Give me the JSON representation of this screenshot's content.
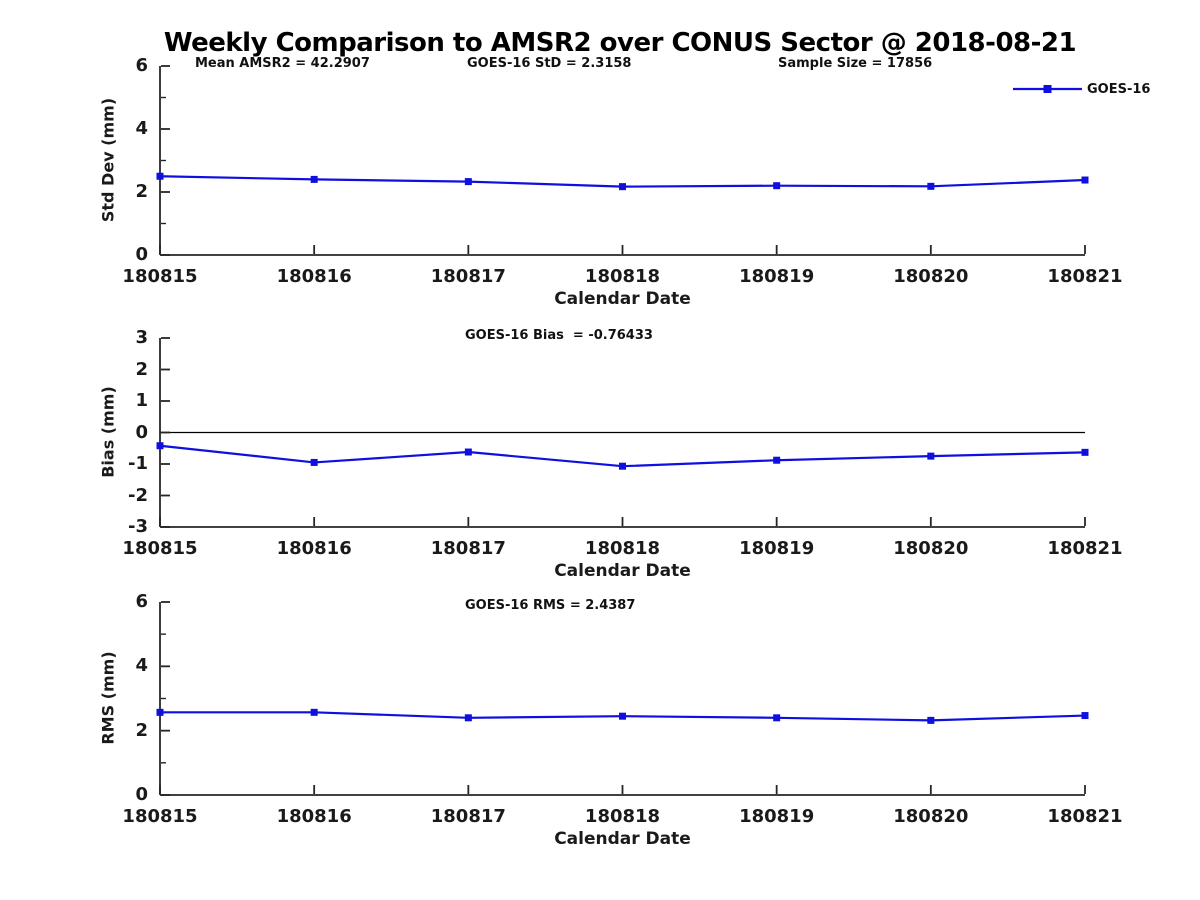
{
  "page": {
    "title": "Weekly Comparison to AMSR2 over CONUS Sector @ 2018-08-21"
  },
  "legend": {
    "label": "GOES-16"
  },
  "colors": {
    "line": "#0f0fe0",
    "marker": "#0f0fe0",
    "axis": "#262626",
    "zero_line": "#000000",
    "text": "#1a1a1a"
  },
  "chart_data": [
    {
      "type": "line",
      "title": "",
      "categories": [
        "180815",
        "180816",
        "180817",
        "180818",
        "180819",
        "180820",
        "180821"
      ],
      "series": [
        {
          "name": "GOES-16",
          "values": [
            2.5,
            2.4,
            2.33,
            2.17,
            2.2,
            2.18,
            2.38
          ]
        }
      ],
      "xlabel": "Calendar Date",
      "ylabel": "Std Dev (mm)",
      "ylim": [
        0,
        6
      ],
      "yticks": [
        0,
        2,
        4,
        6
      ],
      "minor_yticks": [
        1,
        3,
        5
      ],
      "grid": false,
      "legend_position": "top-right",
      "annotations": [
        "Mean AMSR2 = 42.2907",
        "GOES-16 StD = 2.3158",
        "Sample Size = 17856"
      ]
    },
    {
      "type": "line",
      "title": "",
      "categories": [
        "180815",
        "180816",
        "180817",
        "180818",
        "180819",
        "180820",
        "180821"
      ],
      "series": [
        {
          "name": "GOES-16",
          "values": [
            -0.42,
            -0.95,
            -0.62,
            -1.07,
            -0.88,
            -0.75,
            -0.63
          ]
        }
      ],
      "xlabel": "Calendar Date",
      "ylabel": "Bias (mm)",
      "ylim": [
        -3,
        3
      ],
      "yticks": [
        -3,
        -2,
        -1,
        0,
        1,
        2,
        3
      ],
      "minor_yticks": [],
      "grid": false,
      "zero_line": true,
      "annotations": [
        "GOES-16 Bias  = -0.76433"
      ]
    },
    {
      "type": "line",
      "title": "",
      "categories": [
        "180815",
        "180816",
        "180817",
        "180818",
        "180819",
        "180820",
        "180821"
      ],
      "series": [
        {
          "name": "GOES-16",
          "values": [
            2.57,
            2.57,
            2.4,
            2.45,
            2.4,
            2.32,
            2.47
          ]
        }
      ],
      "xlabel": "Calendar Date",
      "ylabel": "RMS (mm)",
      "ylim": [
        0,
        6
      ],
      "yticks": [
        0,
        2,
        4,
        6
      ],
      "minor_yticks": [
        1,
        3,
        5
      ],
      "grid": false,
      "annotations": [
        "GOES-16 RMS = 2.4387"
      ]
    }
  ]
}
